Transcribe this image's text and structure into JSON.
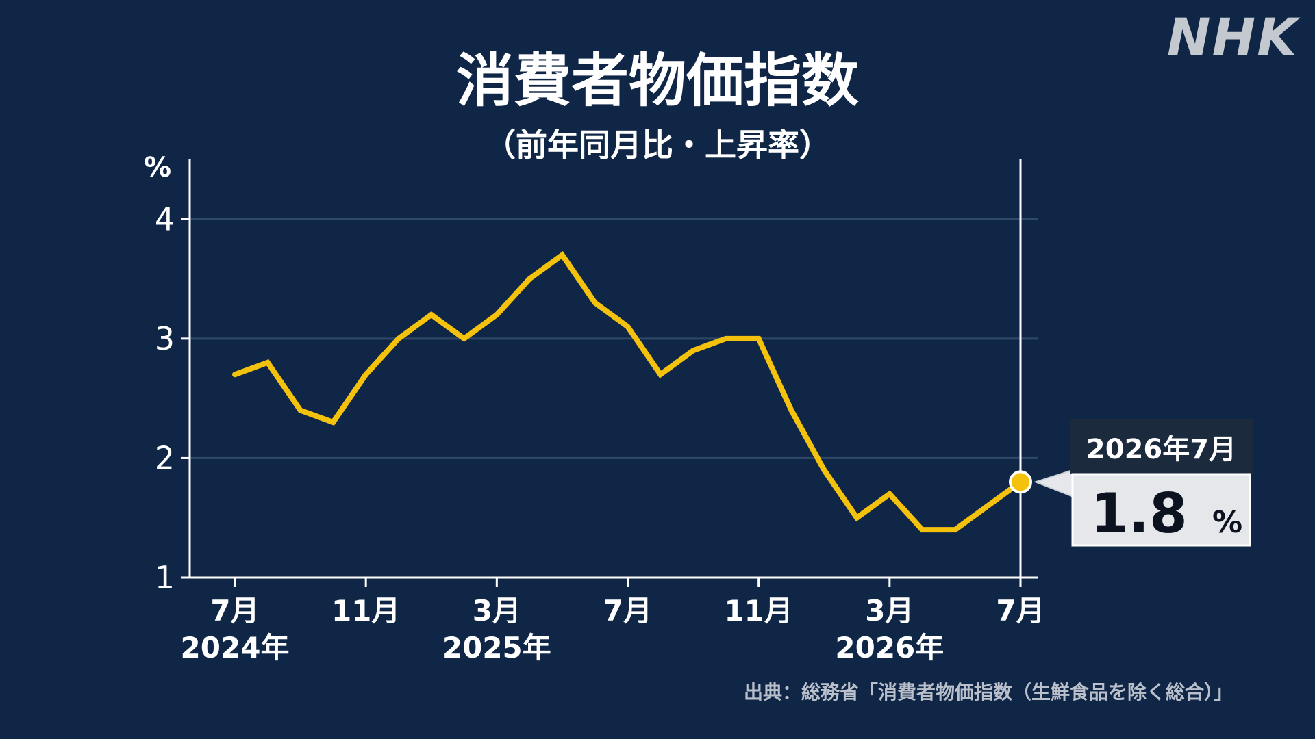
{
  "logo": "NHK",
  "title": "消費者物価指数",
  "subtitle": "（前年同月比・上昇率）",
  "source": "出典：総務省「消費者物価指数（生鮮食品を除く総合）」",
  "colors": {
    "background": "#102646",
    "line": "#f4c20d",
    "axis": "#ffffff",
    "grid": "#2f4868",
    "callout_header": "#1b2a3d",
    "callout_body": "#e6e7ea"
  },
  "chart_data": {
    "type": "line",
    "ylabel": "%",
    "ylim": [
      1,
      4.5
    ],
    "yticks": [
      "1",
      "2",
      "3",
      "4"
    ],
    "grid": true,
    "x": [
      "2024-07",
      "2024-08",
      "2024-09",
      "2024-10",
      "2024-11",
      "2024-12",
      "2025-01",
      "2025-02",
      "2025-03",
      "2025-04",
      "2025-05",
      "2025-06",
      "2025-07",
      "2025-08",
      "2025-09",
      "2025-10",
      "2025-11",
      "2025-12",
      "2026-01",
      "2026-02",
      "2026-03",
      "2026-04",
      "2026-05",
      "2026-06",
      "2026-07"
    ],
    "values": [
      2.7,
      2.8,
      2.4,
      2.3,
      2.7,
      3.0,
      3.2,
      3.0,
      3.2,
      3.5,
      3.7,
      3.3,
      3.1,
      2.7,
      2.9,
      3.0,
      3.0,
      2.4,
      1.9,
      1.5,
      1.7,
      1.4,
      1.4,
      1.6,
      1.8
    ],
    "xticks": [
      {
        "index": 0,
        "month": "7月",
        "year": "2024年"
      },
      {
        "index": 4,
        "month": "11月",
        "year": ""
      },
      {
        "index": 8,
        "month": "3月",
        "year": "2025年"
      },
      {
        "index": 12,
        "month": "7月",
        "year": ""
      },
      {
        "index": 16,
        "month": "11月",
        "year": ""
      },
      {
        "index": 20,
        "month": "3月",
        "year": "2026年"
      },
      {
        "index": 24,
        "month": "7月",
        "year": ""
      }
    ],
    "highlight": {
      "index": 24,
      "date_label": "2026年7月",
      "value": "1.8",
      "unit": "%"
    }
  }
}
